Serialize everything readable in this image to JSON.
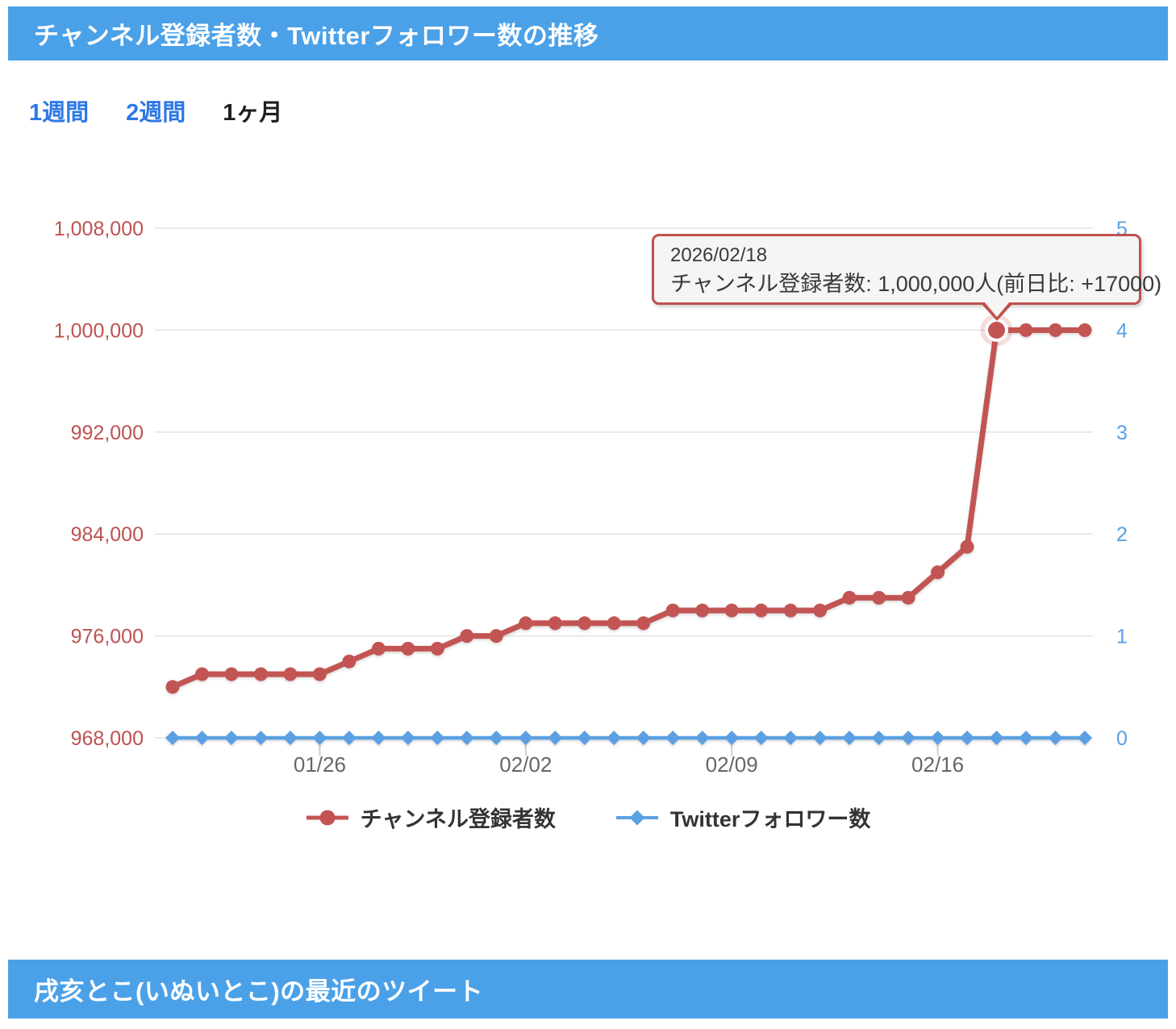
{
  "header": {
    "title": "チャンネル登録者数・Twitterフォロワー数の推移"
  },
  "tabs": [
    {
      "label": "1週間",
      "active": false
    },
    {
      "label": "2週間",
      "active": false
    },
    {
      "label": "1ヶ月",
      "active": true
    }
  ],
  "colors": {
    "header_bg": "#4BA1E8",
    "link_blue": "#2E78E6",
    "tooltip_bg": "#F7F4F4",
    "tooltip_border": "#C0514F",
    "red_series": "#C25553",
    "blue_series": "#5BA0E2"
  },
  "chart_data": {
    "type": "line",
    "title": "チャンネル登録者数・Twitterフォロワー数の推移",
    "x": [
      "01/21",
      "01/22",
      "01/23",
      "01/24",
      "01/25",
      "01/26",
      "01/27",
      "01/28",
      "01/29",
      "01/30",
      "01/31",
      "02/01",
      "02/02",
      "02/03",
      "02/04",
      "02/05",
      "02/06",
      "02/07",
      "02/08",
      "02/09",
      "02/10",
      "02/11",
      "02/12",
      "02/13",
      "02/14",
      "02/15",
      "02/16",
      "02/17",
      "02/18",
      "02/19",
      "02/20",
      "02/21"
    ],
    "x_ticks": [
      {
        "index": 5,
        "label": "01/26"
      },
      {
        "index": 12,
        "label": "02/02"
      },
      {
        "index": 19,
        "label": "02/09"
      },
      {
        "index": 26,
        "label": "02/16"
      }
    ],
    "series": [
      {
        "name": "チャンネル登録者数",
        "axis": "left",
        "marker": "circle",
        "color": "#C25553",
        "label_color": "#BE5150",
        "values": [
          972000,
          973000,
          973000,
          973000,
          973000,
          973000,
          974000,
          975000,
          975000,
          975000,
          976000,
          976000,
          977000,
          977000,
          977000,
          977000,
          977000,
          978000,
          978000,
          978000,
          978000,
          978000,
          978000,
          979000,
          979000,
          979000,
          981000,
          983000,
          1000000,
          1000000,
          1000000,
          1000000
        ]
      },
      {
        "name": "Twitterフォロワー数",
        "axis": "right",
        "marker": "diamond",
        "color": "#5BA0E2",
        "label_color": "#58A0E4",
        "values": [
          0,
          0,
          0,
          0,
          0,
          0,
          0,
          0,
          0,
          0,
          0,
          0,
          0,
          0,
          0,
          0,
          0,
          0,
          0,
          0,
          0,
          0,
          0,
          0,
          0,
          0,
          0,
          0,
          0,
          0,
          0,
          0
        ]
      }
    ],
    "left_axis": {
      "min": 968000,
      "max": 1008000,
      "tick_labels": [
        "1,008,000",
        "1,000,000",
        "992,000",
        "984,000",
        "976,000",
        "968,000"
      ]
    },
    "right_axis": {
      "min": 0,
      "max": 5,
      "tick_labels": [
        "5",
        "4",
        "3",
        "2",
        "1",
        "0"
      ]
    },
    "grid": "on",
    "grid_color": "#E3E3E3",
    "tick_color": "#CFCFCF",
    "x_label_color": "#666666",
    "legend_position": "bottom",
    "highlight": {
      "series": 0,
      "index": 28
    },
    "tooltip": {
      "date": "2026/02/18",
      "value_line": "チャンネル登録者数: 1,000,000人(前日比: +17000)"
    }
  },
  "footer": {
    "title": "戌亥とこ(いぬいとこ)の最近のツイート"
  }
}
